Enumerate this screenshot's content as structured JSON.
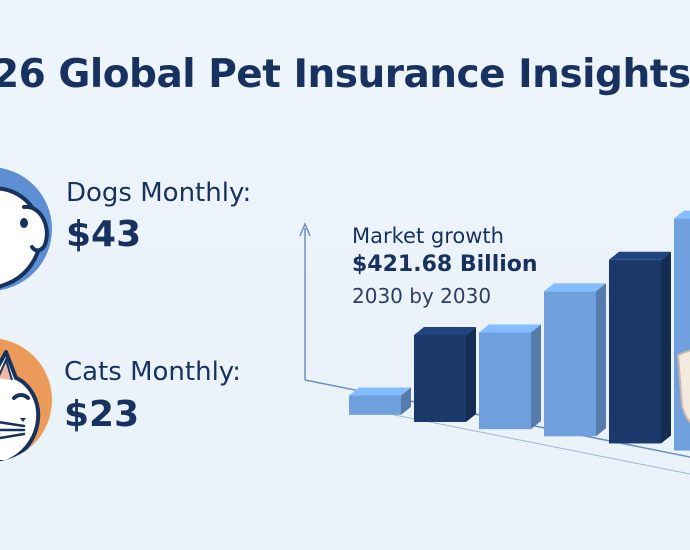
{
  "title": "26 Global Pet Insurance Insights",
  "dogs": {
    "label": "Dogs Monthly:",
    "value": "$43",
    "icon": "dog-icon",
    "circle_color": "#5f8fd3"
  },
  "cats": {
    "label": "Cats Monthly:",
    "value": "$23",
    "icon": "cat-icon",
    "circle_color": "#ec9a59"
  },
  "chart_data": {
    "type": "bar",
    "title": "Market growth",
    "annotation_value": "$421.68 Billion",
    "annotation_sub": "2030 by 2030",
    "values": [
      1,
      4.5,
      5,
      7.5,
      9.5,
      12
    ],
    "colors": [
      "#6f9fdc",
      "#1b3a6b",
      "#6f9fdc",
      "#6f9fdc",
      "#1b3a6b",
      "#6f9fdc"
    ],
    "grid": false,
    "legend": "none",
    "shield_icon": "shield-icon"
  }
}
